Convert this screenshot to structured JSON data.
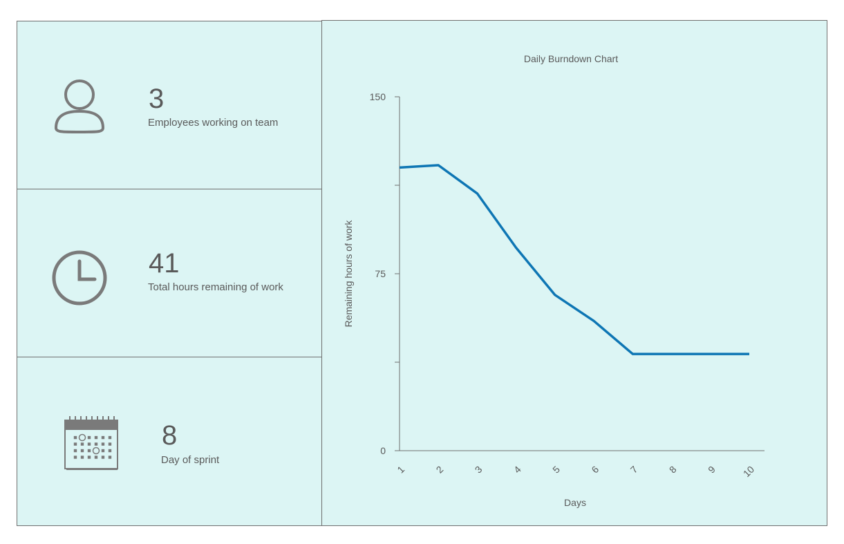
{
  "stats": [
    {
      "value": "3",
      "label": "Employees working on team",
      "icon": "person-icon"
    },
    {
      "value": "41",
      "label": "Total hours remaining of work",
      "icon": "clock-icon"
    },
    {
      "value": "8",
      "label": "Day of sprint",
      "icon": "calendar-icon"
    }
  ],
  "colors": {
    "panel_bg": "#dcf5f4",
    "line": "#0e76b4",
    "icon": "#7a7a7a"
  },
  "chart_data": {
    "type": "line",
    "title": "Daily Burndown Chart",
    "xlabel": "Days",
    "ylabel": "Remaining hours of work",
    "x": [
      1,
      2,
      3,
      4,
      5,
      6,
      7,
      8,
      9,
      10
    ],
    "x_tick_labels": [
      "1",
      "2",
      "3",
      "4",
      "5",
      "6",
      "7",
      "8",
      "9",
      "10"
    ],
    "series": [
      {
        "values": [
          120,
          121,
          109,
          86,
          66,
          55,
          41,
          41,
          41,
          41
        ]
      }
    ],
    "ylim": [
      0,
      150
    ],
    "y_tick_labels": [
      "0",
      "75",
      "150"
    ],
    "grid": false
  }
}
